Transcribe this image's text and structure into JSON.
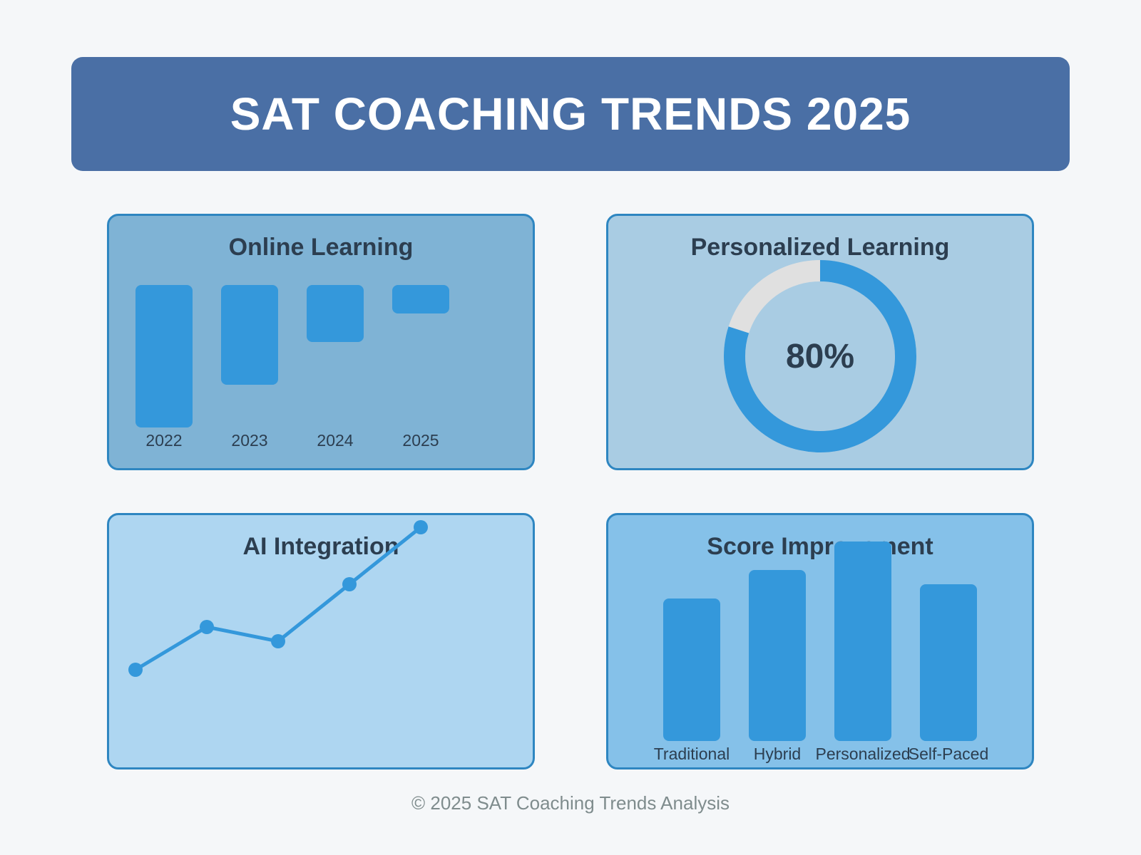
{
  "banner": {
    "title": "SAT COACHING TRENDS 2025"
  },
  "colors": {
    "bar": "#3498db",
    "panel_online": "#7fb3d5",
    "panel_personalized": "#a9cce3",
    "panel_ai": "#aed6f1",
    "panel_score": "#85c1e9",
    "ring_track": "#e0e0e0"
  },
  "chart_data": [
    {
      "type": "bar",
      "title": "Online Learning",
      "categories": [
        "2022",
        "2023",
        "2024",
        "2025"
      ],
      "values": [
        100,
        70,
        40,
        20
      ]
    },
    {
      "type": "pie",
      "title": "Personalized Learning",
      "value_label": "80%",
      "value": 80,
      "max": 100
    },
    {
      "type": "line",
      "title": "AI Integration",
      "values": [
        30,
        60,
        50,
        90,
        130
      ]
    },
    {
      "type": "bar",
      "title": "Score Improvement",
      "categories": [
        "Traditional",
        "Hybrid",
        "Personalized",
        "Self-Paced"
      ],
      "values": [
        100,
        120,
        140,
        110
      ]
    }
  ],
  "footer": {
    "text": "© 2025 SAT Coaching Trends Analysis"
  }
}
